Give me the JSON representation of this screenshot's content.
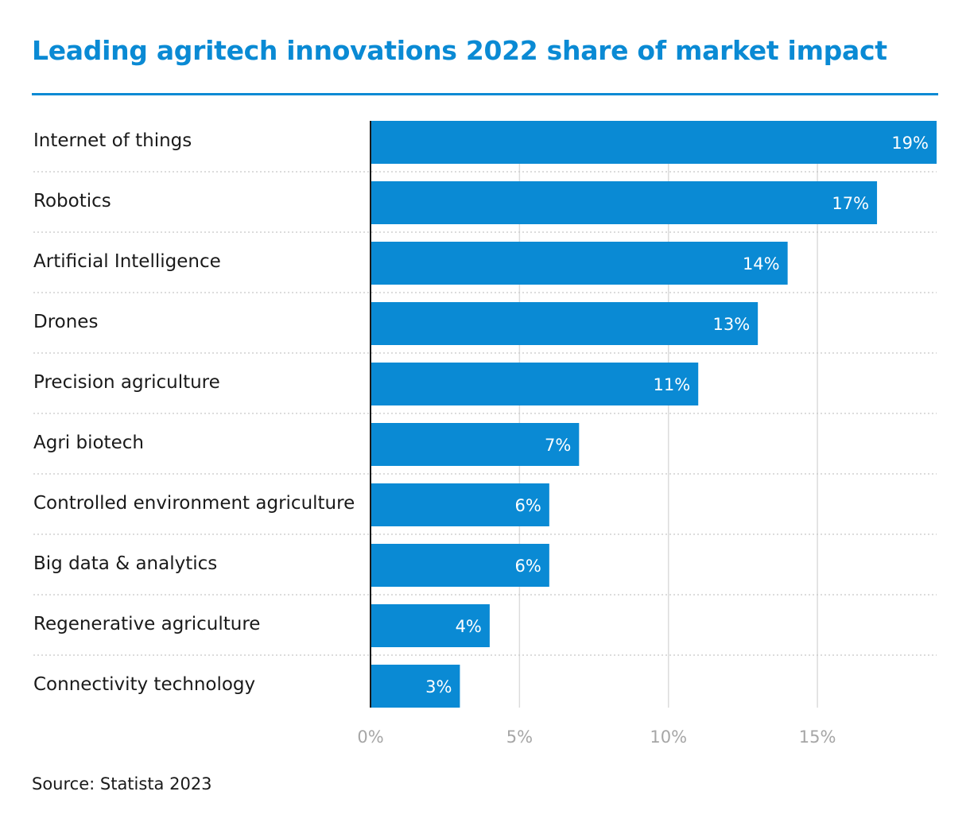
{
  "colors": {
    "title": "#0a8ad4",
    "bar": "#0a8ad4",
    "bar_label": "#ffffff",
    "category_text": "#1a1a1a",
    "tick_text": "#a6a6a6",
    "gridline": "#dcdcdc",
    "separator": "#c8c8c8",
    "axis_line": "#1a1a1a"
  },
  "source": "Source: Statista 2023",
  "chart_data": {
    "type": "bar",
    "orientation": "horizontal",
    "title": "Leading agritech innovations 2022 share of market impact",
    "categories": [
      "Internet of things",
      "Robotics",
      "Artificial Intelligence",
      "Drones",
      "Precision agriculture",
      "Agri biotech",
      "Controlled environment agriculture",
      "Big data & analytics",
      "Regenerative agriculture",
      "Connectivity technology"
    ],
    "values": [
      19,
      17,
      14,
      13,
      11,
      7,
      6,
      6,
      4,
      3
    ],
    "value_labels": [
      "19%",
      "17%",
      "14%",
      "13%",
      "11%",
      "7%",
      "6%",
      "6%",
      "4%",
      "3%"
    ],
    "xlim": [
      0,
      19
    ],
    "xticks": [
      0,
      5,
      10,
      15
    ],
    "xtick_labels": [
      "0%",
      "5%",
      "10%",
      "15%"
    ],
    "grid": true,
    "legend": "none"
  }
}
